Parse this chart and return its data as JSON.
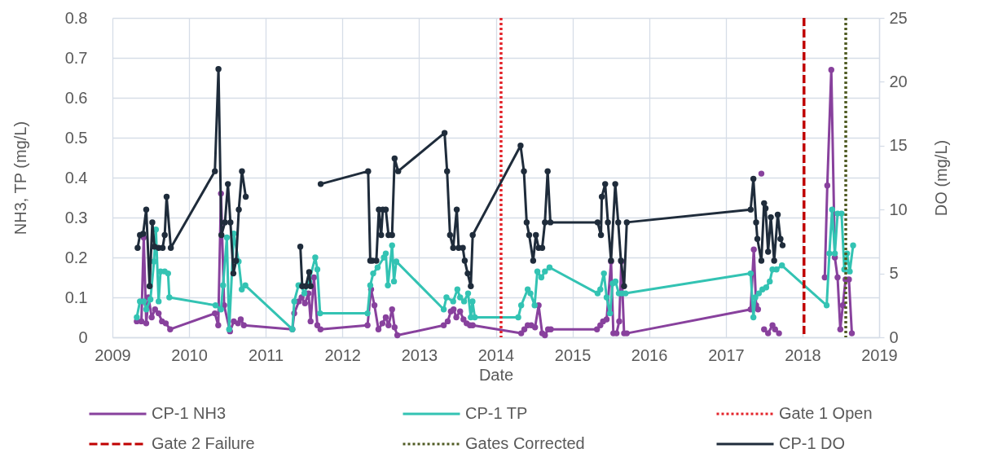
{
  "chart_data": {
    "type": "line",
    "xlabel": "Date",
    "ylabel": "NH3, TP (mg/L)",
    "y2label": "DO (mg/L)",
    "xlim": [
      "2009",
      "2019"
    ],
    "xticks": [
      "2009",
      "2010",
      "2011",
      "2012",
      "2013",
      "2014",
      "2015",
      "2016",
      "2017",
      "2018",
      "2019"
    ],
    "ylim": [
      0,
      0.8
    ],
    "yticks": [
      0,
      0.1,
      0.2,
      0.3,
      0.4,
      0.5,
      0.6,
      0.7,
      0.8
    ],
    "y2lim": [
      0,
      25
    ],
    "y2ticks": [
      0,
      5,
      10,
      15,
      20,
      25
    ],
    "grid": true,
    "legend": "bottom",
    "marker": "circle",
    "line_style": "solid",
    "series": [
      {
        "name": "CP-1 NH3",
        "color": "#88419d",
        "x": [
          "2009-04-27",
          "2009-05-19",
          "2009-05-30",
          "2009-06-11",
          "2009-06-22",
          "2009-07-07",
          "2009-07-23",
          "2009-08-09",
          "2009-08-25",
          "2009-09-12",
          "2009-10-03",
          "2010-05-04",
          "2010-05-20",
          "2010-06-02",
          "2010-06-17",
          "2010-07-15",
          "2010-08-02",
          "2010-08-22",
          "2010-09-04",
          "2010-09-19",
          "2011-05-08",
          "2011-05-17",
          "2011-06-08",
          "2011-06-21",
          "2011-07-07",
          "2011-07-24",
          "2011-08-03",
          "2011-08-19",
          "2011-09-04",
          "2011-09-19",
          "2012-04-30",
          "2012-05-17",
          "2012-06-02",
          "2012-06-21",
          "2012-07-10",
          "2012-07-26",
          "2012-08-08",
          "2012-08-25",
          "2012-09-06",
          "2012-09-19",
          "2013-04-28",
          "2013-05-17",
          "2013-06-01",
          "2013-06-14",
          "2013-06-27",
          "2013-07-15",
          "2013-07-31",
          "2013-08-15",
          "2013-08-31",
          "2013-09-13",
          "2014-05-02",
          "2014-05-17",
          "2014-06-02",
          "2014-06-19",
          "2014-07-07",
          "2014-07-24",
          "2014-08-10",
          "2014-08-23",
          "2014-09-07",
          "2014-09-20",
          "2015-04-28",
          "2015-05-14",
          "2015-05-27",
          "2015-06-13",
          "2015-07-04",
          "2015-07-15",
          "2015-07-30",
          "2015-08-12",
          "2015-08-22",
          "2015-09-04",
          "2015-09-17",
          "2017-04-29",
          "2017-05-14",
          "2017-05-25",
          "2017-06-03",
          "2017-06-11",
          "2017-06-19",
          "2017-06-26",
          "2017-07-02",
          "2017-07-21",
          "2017-08-11",
          "2017-08-23",
          "2017-09-11",
          "2017-12-01",
          "2018-04-17",
          "2018-04-29",
          "2018-05-18",
          "2018-06-04",
          "2018-06-17",
          "2018-06-30",
          "2018-07-12",
          "2018-07-25",
          "2018-08-10",
          "2018-08-24"
        ],
        "values": [
          0.04,
          0.04,
          0.25,
          0.035,
          0.1,
          0.05,
          0.07,
          0.06,
          0.04,
          0.035,
          0.02,
          0.06,
          0.03,
          0.36,
          0.08,
          0.015,
          0.04,
          0.035,
          0.045,
          0.03,
          0.02,
          0.06,
          0.09,
          0.1,
          0.085,
          0.11,
          0.04,
          0.15,
          0.03,
          0.02,
          0.03,
          0.12,
          0.08,
          0.02,
          0.035,
          0.05,
          0.03,
          0.07,
          0.025,
          0.005,
          0.03,
          0.04,
          0.065,
          0.07,
          0.05,
          0.065,
          0.045,
          0.035,
          0.03,
          0.03,
          0.01,
          0.02,
          0.03,
          0.03,
          0.025,
          0.08,
          0.01,
          0.005,
          0.02,
          0.02,
          0.02,
          0.03,
          0.04,
          0.045,
          0.19,
          0.01,
          0.01,
          0.04,
          0.19,
          0.01,
          0.01,
          0.07,
          0.22,
          0.08,
          0.07,
          null,
          0.41,
          null,
          0.02,
          0.01,
          0.03,
          0.02,
          0.01,
          null,
          0.15,
          0.38,
          0.67,
          0.2,
          0.15,
          0.02,
          0.08,
          0.145,
          0.145,
          0.01
        ]
      },
      {
        "name": "CP-1 TP",
        "color": "#33c3b3",
        "x": [
          "2009-04-27",
          "2009-05-12",
          "2009-05-30",
          "2009-06-11",
          "2009-07-01",
          "2009-07-18",
          "2009-07-27",
          "2009-08-09",
          "2009-08-18",
          "2009-09-07",
          "2009-09-23",
          "2009-09-29",
          "2010-05-07",
          "2010-06-02",
          "2010-06-12",
          "2010-06-30",
          "2010-07-11",
          "2010-08-02",
          "2010-08-25",
          "2010-09-09",
          "2010-09-26",
          "2011-05-08",
          "2011-05-17",
          "2011-06-06",
          "2011-06-18",
          "2011-07-04",
          "2011-07-27",
          "2011-08-25",
          "2011-09-04",
          "2011-09-17",
          "2012-04-30",
          "2012-05-13",
          "2012-05-27",
          "2012-06-17",
          "2012-07-17",
          "2012-07-26",
          "2012-08-05",
          "2012-08-25",
          "2012-09-03",
          "2012-09-14",
          "2013-04-28",
          "2013-05-11",
          "2013-06-12",
          "2013-07-02",
          "2013-07-15",
          "2013-08-03",
          "2013-08-22",
          "2013-09-04",
          "2013-09-12",
          "2013-09-23",
          "2014-04-18",
          "2014-05-02",
          "2014-06-02",
          "2014-06-15",
          "2014-07-05",
          "2014-07-18",
          "2014-08-06",
          "2014-08-23",
          "2014-09-14",
          "2015-05-01",
          "2015-05-14",
          "2015-05-31",
          "2015-06-13",
          "2015-06-29",
          "2015-07-12",
          "2015-07-25",
          "2015-08-10",
          "2015-08-25",
          "2015-09-11",
          "2017-04-29",
          "2017-05-12",
          "2017-05-21",
          "2017-06-07",
          "2017-06-24",
          "2017-07-12",
          "2017-07-29",
          "2017-08-11",
          "2017-08-30",
          "2017-09-25",
          "2018-04-26",
          "2018-05-09",
          "2018-05-22",
          "2018-06-04",
          "2018-06-17",
          "2018-07-06",
          "2018-07-19",
          "2018-08-01",
          "2018-08-14",
          "2018-08-30"
        ],
        "values": [
          0.05,
          0.09,
          0.09,
          0.07,
          0.095,
          0.19,
          0.27,
          0.09,
          0.165,
          0.165,
          0.16,
          0.1,
          0.08,
          0.07,
          0.13,
          0.25,
          0.02,
          0.26,
          0.19,
          0.12,
          0.13,
          0.02,
          0.09,
          0.13,
          0.13,
          0.11,
          0.14,
          0.2,
          0.17,
          0.06,
          0.06,
          0.13,
          0.16,
          0.175,
          0.2,
          0.21,
          0.13,
          0.23,
          0.14,
          0.19,
          0.07,
          0.1,
          0.09,
          0.12,
          0.1,
          0.09,
          0.11,
          0.05,
          0.09,
          0.05,
          0.05,
          0.08,
          0.12,
          0.11,
          0.08,
          0.165,
          0.15,
          0.165,
          0.175,
          0.11,
          0.12,
          0.16,
          0.1,
          0.06,
          0.135,
          0.14,
          0.11,
          0.11,
          0.11,
          0.16,
          0.05,
          0.1,
          0.11,
          0.12,
          0.125,
          0.14,
          0.17,
          0.17,
          0.18,
          0.08,
          0.21,
          0.32,
          0.21,
          0.31,
          0.31,
          0.17,
          0.21,
          0.165,
          0.23
        ]
      },
      {
        "name": "CP-1 DO",
        "color": "#1f2c3b",
        "axis": "y2",
        "x": [
          "2009-05-01",
          "2009-05-12",
          "2009-05-27",
          "2009-06-11",
          "2009-06-27",
          "2009-07-10",
          "2009-07-20",
          "2009-08-09",
          "2009-08-28",
          "2009-09-07",
          "2009-09-16",
          "2009-10-06",
          "2010-05-04",
          "2010-05-21",
          "2010-06-04",
          "2010-06-21",
          "2010-07-05",
          "2010-07-17",
          "2010-07-31",
          "2010-08-13",
          "2010-08-26",
          "2010-09-10",
          "2010-09-28",
          "2011-02-01",
          "2011-06-15",
          "2011-06-24",
          "2011-07-11",
          "2011-07-27",
          "2011-08-03",
          "2011-08-20",
          "2011-09-20",
          "2012-05-03",
          "2012-05-13",
          "2012-05-23",
          "2012-06-11",
          "2012-06-23",
          "2012-07-04",
          "2012-07-12",
          "2012-07-26",
          "2012-08-08",
          "2012-08-25",
          "2012-09-06",
          "2012-09-23",
          "2013-05-02",
          "2013-05-14",
          "2013-05-28",
          "2013-06-12",
          "2013-06-29",
          "2013-07-08",
          "2013-07-28",
          "2013-08-06",
          "2013-08-20",
          "2013-09-04",
          "2013-09-13",
          "2014-04-29",
          "2014-05-15",
          "2014-05-28",
          "2014-06-09",
          "2014-06-28",
          "2014-07-11",
          "2014-07-24",
          "2014-08-10",
          "2014-08-23",
          "2014-09-05",
          "2014-09-18",
          "2015-05-01",
          "2015-05-17",
          "2015-05-21",
          "2015-06-06",
          "2015-06-19",
          "2015-07-04",
          "2015-07-24",
          "2015-08-07",
          "2015-08-20",
          "2015-09-04",
          "2015-09-17",
          "2017-04-29",
          "2017-05-12",
          "2017-05-25",
          "2017-05-31",
          "2017-06-19",
          "2017-07-02",
          "2017-07-09",
          "2017-07-21",
          "2017-08-03",
          "2017-08-19",
          "2017-09-05",
          "2017-09-18",
          "2017-09-28"
        ],
        "values": [
          7,
          8,
          8.1,
          10,
          4,
          9,
          7.1,
          7,
          7,
          8,
          11,
          7,
          13,
          21,
          8,
          9,
          12,
          9,
          5,
          6,
          10,
          13,
          11,
          null,
          7.1,
          4,
          4,
          5.1,
          4,
          null,
          12,
          13,
          6,
          6,
          6,
          10,
          8,
          10,
          10,
          8,
          8,
          14,
          13,
          16,
          13,
          8,
          7,
          10,
          7,
          7,
          6,
          5,
          4,
          8,
          15,
          13,
          9,
          8,
          6,
          8,
          7,
          7,
          9,
          13,
          9,
          9,
          8,
          11,
          12,
          9,
          6,
          12,
          9,
          6,
          4,
          9,
          10,
          12.4,
          9,
          7.7,
          6,
          10.5,
          10.1,
          6.7,
          9.4,
          6,
          9.6,
          7.7,
          7.2
        ]
      }
    ],
    "ref_lines": [
      {
        "axis": "x",
        "value": "2014-01-26",
        "label": "Gate 1 Open",
        "color": "#e3242b",
        "line_style": "dotted"
      },
      {
        "axis": "x",
        "value": "2018-01-08",
        "label": "Gate 2 Failure",
        "color": "#c00000",
        "line_style": "dashed"
      },
      {
        "axis": "x",
        "value": "2018-07-26",
        "label": "Gates Corrected",
        "color": "#4f5a22",
        "line_style": "dotted"
      }
    ]
  }
}
